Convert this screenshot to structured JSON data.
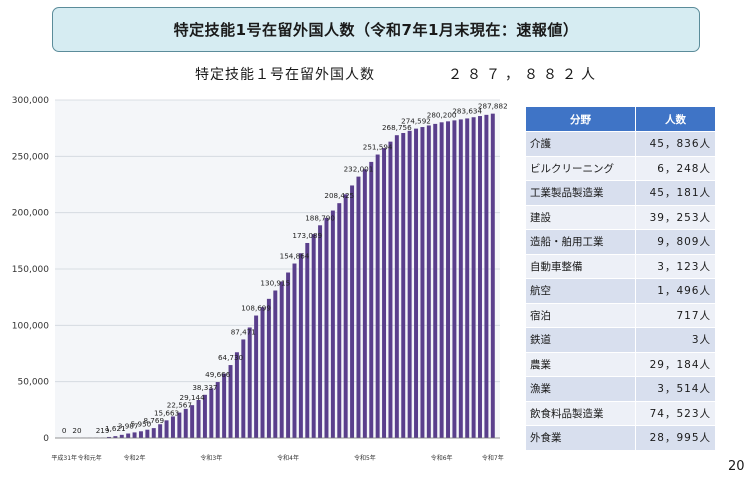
{
  "header": {
    "title": "特定技能1号在留外国人数（令和7年1月末現在：速報値）"
  },
  "subtitle": {
    "label": "特定技能１号在留外国人数",
    "value": "２８７，８８２人"
  },
  "chart_data": {
    "type": "bar",
    "title": "特定技能１号在留外国人数",
    "ylim": [
      0,
      300000
    ],
    "y_ticks": [
      0,
      50000,
      100000,
      150000,
      200000,
      250000,
      300000
    ],
    "y_tick_labels": [
      "0",
      "50,000",
      "100,000",
      "150,000",
      "200,000",
      "250,000",
      "300,000"
    ],
    "bar_color": "#5a3f8c",
    "values": [
      0,
      20,
      219,
      1621,
      3987,
      5950,
      8769,
      15663,
      22567,
      29144,
      38337,
      49666,
      64730,
      87471,
      108699,
      130915,
      154864,
      173089,
      188790,
      208425,
      232001,
      251594,
      268756,
      274592,
      280200,
      283634,
      287882
    ],
    "labels": [
      "0",
      "20",
      "219",
      "1,621",
      "3,987",
      "5,950",
      "8,769",
      "15,663",
      "22,567",
      "29,144",
      "38,337",
      "49,666",
      "64,730",
      "87,471",
      "108,699",
      "130,915",
      "154,864",
      "173,089",
      "188,790",
      "208,425",
      "232,001",
      "251,594",
      "268,756",
      "274,592",
      "280,200",
      "283,634",
      "287,882"
    ],
    "era_labels": [
      "平成31年",
      "令和元年",
      "令和2年",
      "令和3年",
      "令和4年",
      "令和5年",
      "令和6年",
      "令和7年"
    ]
  },
  "table": {
    "headers": [
      "分野",
      "人数"
    ],
    "rows": [
      {
        "field": "介護",
        "count": "45，836人"
      },
      {
        "field": "ビルクリーニング",
        "count": "6，248人"
      },
      {
        "field": "工業製品製造業",
        "count": "45，181人"
      },
      {
        "field": "建設",
        "count": "39，253人"
      },
      {
        "field": "造船・舶用工業",
        "count": "9，809人"
      },
      {
        "field": "自動車整備",
        "count": "3，123人"
      },
      {
        "field": "航空",
        "count": "1，496人"
      },
      {
        "field": "宿泊",
        "count": "717人"
      },
      {
        "field": "鉄道",
        "count": "3人"
      },
      {
        "field": "農業",
        "count": "29，184人"
      },
      {
        "field": "漁業",
        "count": "3，514人"
      },
      {
        "field": "飲食料品製造業",
        "count": "74，523人"
      },
      {
        "field": "外食業",
        "count": "28，995人"
      }
    ]
  },
  "page_number": "20"
}
